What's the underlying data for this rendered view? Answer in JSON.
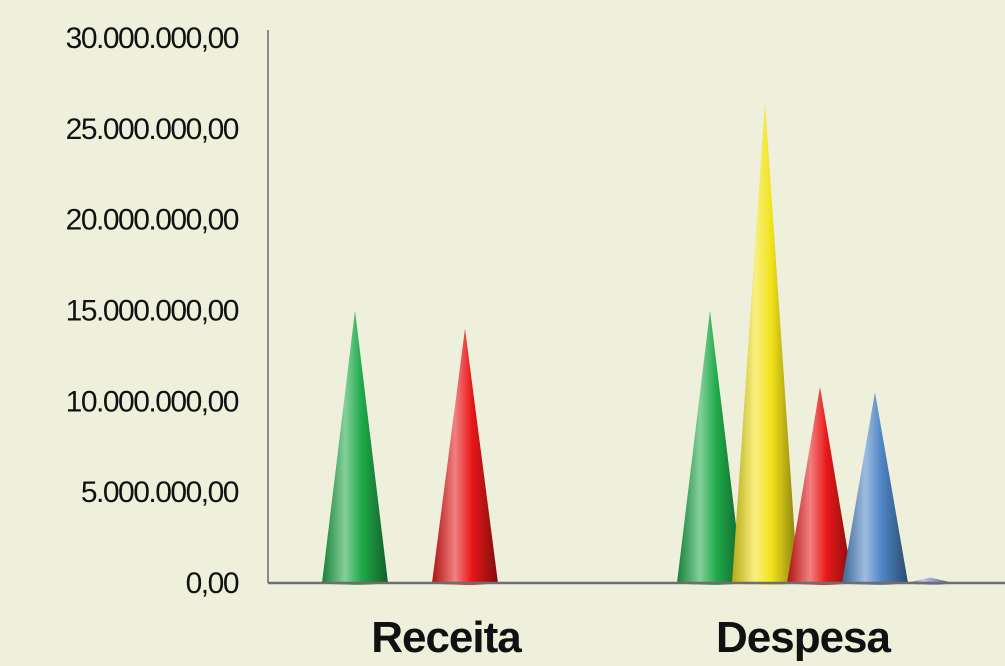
{
  "chart_data": {
    "type": "bar",
    "mark_shape": "cone",
    "title": "",
    "xlabel": "",
    "ylabel": "",
    "ylim": [
      0,
      30000000
    ],
    "y_ticks": [
      {
        "value": 0,
        "label": "0,00"
      },
      {
        "value": 5000000,
        "label": "5.000.000,00"
      },
      {
        "value": 10000000,
        "label": "10.000.000,00"
      },
      {
        "value": 15000000,
        "label": "15.000.000,00"
      },
      {
        "value": 20000000,
        "label": "20.000.000,00"
      },
      {
        "value": 25000000,
        "label": "25.000.000,00"
      },
      {
        "value": 30000000,
        "label": "30.000.000,00"
      }
    ],
    "grid": false,
    "legend": "none",
    "categories": [
      "Receita",
      "Despesa"
    ],
    "series": [
      {
        "color": "#1faa4a",
        "values": [
          15000000,
          15000000
        ]
      },
      {
        "color": "#f2e21a",
        "values": [
          0,
          26500000
        ]
      },
      {
        "color": "#e81818",
        "values": [
          14000000,
          10800000
        ]
      },
      {
        "color": "#4f86c6",
        "values": [
          0,
          10500000
        ]
      },
      {
        "color": "#8a9ac8",
        "values": [
          0,
          300000
        ]
      }
    ]
  }
}
